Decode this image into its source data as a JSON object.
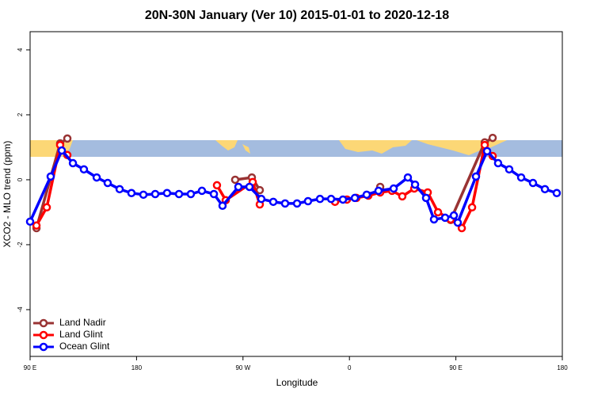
{
  "chart_data": {
    "type": "line",
    "title": "20N-30N January (Ver 10)   2015-01-01 to 2020-12-18",
    "xlabel": "Longitude",
    "ylabel": "XCO2 - MLO trend (ppm)",
    "xlim": [
      90,
      540
    ],
    "ylim": [
      -5.44,
      4.56
    ],
    "xticks": [
      {
        "value": 90,
        "label": "90 E"
      },
      180,
      {
        "value": 270,
        "label": "90 W"
      },
      {
        "value": 360,
        "label": "0"
      },
      {
        "value": 450,
        "label": "90 E"
      },
      {
        "value": 540,
        "label": "180"
      }
    ],
    "yticks": [
      -4,
      -2,
      0,
      2,
      4
    ],
    "legend": "bottom-left",
    "series": [
      {
        "name": "Land Nadir",
        "color": "#993333",
        "x": [
          95.4,
          115.4,
          121.5,
          null,
          263.4,
          277.5,
          284.2,
          null,
          386.0,
          null,
          445.6,
          474.4,
          481.1
        ],
        "values": [
          -1.49,
          1.12,
          1.27,
          null,
          0.0,
          0.07,
          -0.32,
          null,
          -0.22,
          null,
          -1.24,
          1.15,
          1.29
        ]
      },
      {
        "name": "Land Glint",
        "color": "#ff0000",
        "x": [
          95.4,
          104.1,
          115.4,
          121.5,
          null,
          248.0,
          255.4,
          278.2,
          284.2,
          null,
          347.8,
          357.9,
          365.9,
          376.0,
          386.0,
          396.0,
          404.7,
          414.8,
          426.2,
          434.9,
          445.6,
          455.0,
          463.7,
          474.4,
          481.1
        ],
        "values": [
          -1.41,
          -0.85,
          1.07,
          0.76,
          null,
          -0.17,
          -0.63,
          -0.07,
          -0.76,
          null,
          -0.68,
          -0.61,
          -0.56,
          -0.49,
          -0.39,
          -0.34,
          -0.51,
          -0.27,
          -0.39,
          -1.0,
          -1.22,
          -1.49,
          -0.85,
          1.07,
          0.73
        ]
      },
      {
        "name": "Ocean Glint",
        "color": "#0000ff",
        "x": [
          90,
          107.4,
          116.8,
          126.2,
          135.5,
          146.3,
          155.6,
          165.7,
          175.7,
          185.8,
          195.8,
          205.8,
          215.9,
          225.9,
          235.3,
          245.4,
          252.7,
          266.1,
          275.5,
          285.5,
          295.6,
          305.6,
          315.7,
          325.0,
          335.1,
          344.5,
          354.5,
          364.6,
          374.6,
          384.6,
          397.4,
          409.4,
          415.5,
          424.8,
          431.5,
          440.9,
          448.3,
          451.6,
          467.0,
          476.4,
          485.7,
          495.1,
          505.2,
          515.2,
          525.3,
          535.3
        ],
        "values": [
          -1.29,
          0.1,
          0.9,
          0.51,
          0.32,
          0.07,
          -0.1,
          -0.29,
          -0.41,
          -0.46,
          -0.44,
          -0.41,
          -0.44,
          -0.44,
          -0.34,
          -0.44,
          -0.8,
          -0.22,
          -0.22,
          -0.59,
          -0.68,
          -0.73,
          -0.73,
          -0.66,
          -0.59,
          -0.59,
          -0.61,
          -0.56,
          -0.46,
          -0.34,
          -0.27,
          0.07,
          -0.15,
          -0.56,
          -1.22,
          -1.17,
          -1.1,
          -1.32,
          0.1,
          0.88,
          0.51,
          0.32,
          0.07,
          -0.1,
          -0.29,
          -0.41
        ]
      }
    ]
  }
}
